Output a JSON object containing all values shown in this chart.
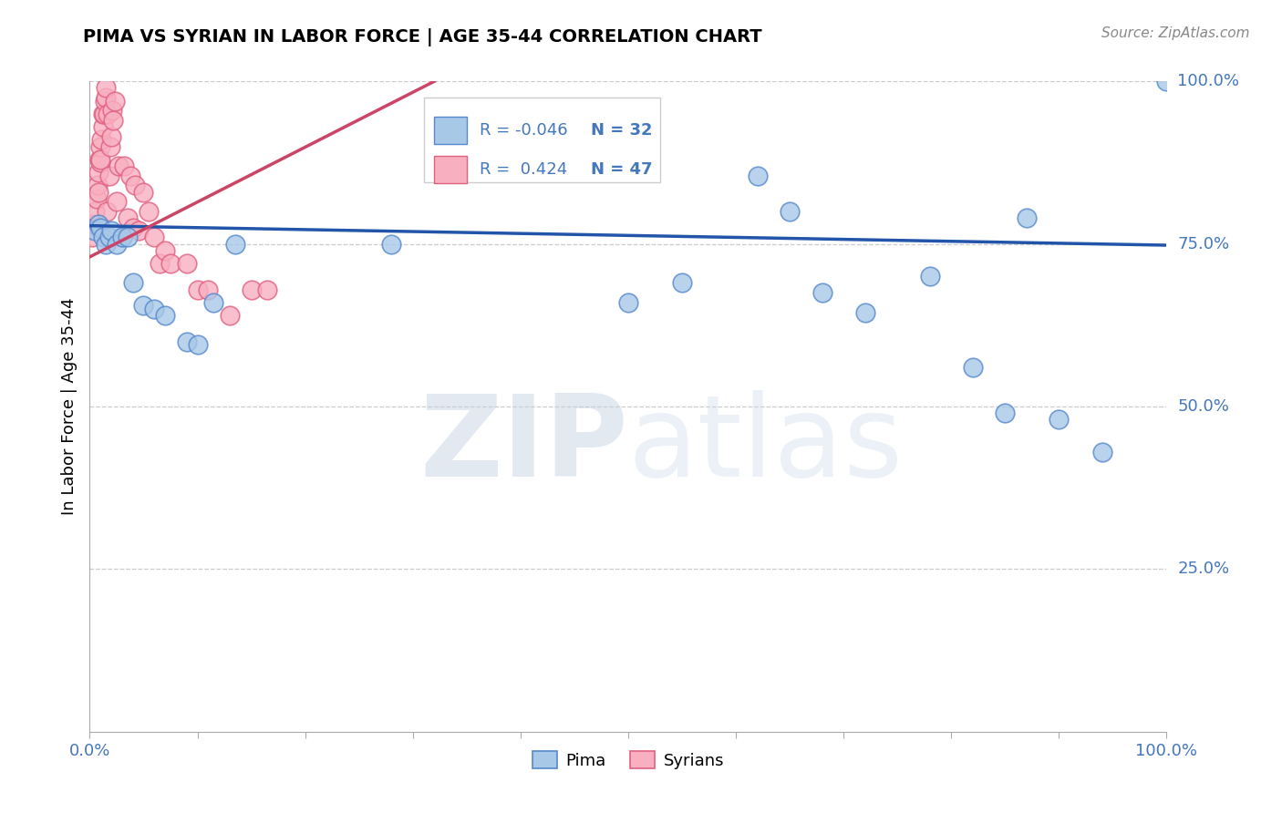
{
  "title": "PIMA VS SYRIAN IN LABOR FORCE | AGE 35-44 CORRELATION CHART",
  "source": "Source: ZipAtlas.com",
  "ylabel": "In Labor Force | Age 35-44",
  "legend_blue_label": "Pima",
  "legend_pink_label": "Syrians",
  "blue_R": -0.046,
  "blue_N": 32,
  "pink_R": 0.424,
  "pink_N": 47,
  "blue_scatter_x": [
    0.005,
    0.008,
    0.01,
    0.012,
    0.015,
    0.018,
    0.02,
    0.025,
    0.03,
    0.035,
    0.04,
    0.05,
    0.06,
    0.07,
    0.09,
    0.1,
    0.115,
    0.135,
    0.28,
    0.5,
    0.55,
    0.62,
    0.65,
    0.68,
    0.72,
    0.78,
    0.82,
    0.85,
    0.87,
    0.9,
    0.94,
    1.0
  ],
  "blue_scatter_y": [
    0.77,
    0.78,
    0.775,
    0.76,
    0.75,
    0.76,
    0.77,
    0.75,
    0.76,
    0.76,
    0.69,
    0.655,
    0.65,
    0.64,
    0.6,
    0.595,
    0.66,
    0.75,
    0.75,
    0.66,
    0.69,
    0.855,
    0.8,
    0.675,
    0.645,
    0.7,
    0.56,
    0.49,
    0.79,
    0.48,
    0.43,
    1.0
  ],
  "pink_scatter_x": [
    0.002,
    0.004,
    0.005,
    0.006,
    0.007,
    0.008,
    0.008,
    0.009,
    0.01,
    0.01,
    0.01,
    0.011,
    0.012,
    0.012,
    0.013,
    0.014,
    0.015,
    0.015,
    0.016,
    0.017,
    0.018,
    0.019,
    0.02,
    0.021,
    0.022,
    0.023,
    0.025,
    0.027,
    0.03,
    0.032,
    0.035,
    0.038,
    0.04,
    0.042,
    0.045,
    0.05,
    0.055,
    0.06,
    0.065,
    0.07,
    0.075,
    0.09,
    0.1,
    0.11,
    0.13,
    0.15,
    0.165
  ],
  "pink_scatter_y": [
    0.76,
    0.78,
    0.8,
    0.82,
    0.84,
    0.83,
    0.86,
    0.88,
    0.875,
    0.9,
    0.88,
    0.91,
    0.93,
    0.95,
    0.95,
    0.97,
    0.975,
    0.99,
    0.8,
    0.95,
    0.855,
    0.9,
    0.915,
    0.955,
    0.94,
    0.97,
    0.815,
    0.87,
    0.76,
    0.87,
    0.79,
    0.855,
    0.775,
    0.84,
    0.77,
    0.83,
    0.8,
    0.76,
    0.72,
    0.74,
    0.72,
    0.72,
    0.68,
    0.68,
    0.64,
    0.68,
    0.68
  ],
  "blue_line_x": [
    0.0,
    1.0
  ],
  "blue_line_y": [
    0.778,
    0.748
  ],
  "pink_line_x": [
    0.0,
    0.32
  ],
  "pink_line_y": [
    0.73,
    1.0
  ],
  "xlim": [
    0.0,
    1.0
  ],
  "ylim": [
    0.0,
    1.0
  ],
  "y_ticks": [
    0.25,
    0.5,
    0.75,
    1.0
  ],
  "y_tick_labels": [
    "25.0%",
    "50.0%",
    "75.0%",
    "100.0%"
  ],
  "x_tick_labels": [
    "0.0%",
    "100.0%"
  ],
  "watermark_zip": "ZIP",
  "watermark_atlas": "atlas",
  "blue_scatter_color": "#a8c8e8",
  "blue_scatter_edge": "#5588cc",
  "pink_scatter_color": "#f8b0c0",
  "pink_scatter_edge": "#e06080",
  "blue_line_color": "#2255aa",
  "pink_line_color": "#cc4466",
  "background_color": "#ffffff",
  "grid_color": "#cccccc",
  "tick_color": "#4477bb",
  "title_color": "#000000",
  "source_color": "#888888"
}
